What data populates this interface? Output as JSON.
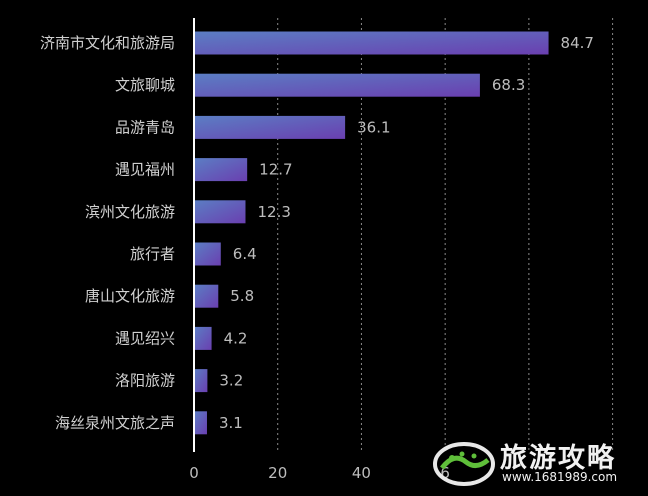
{
  "chart_data": {
    "type": "bar",
    "orientation": "horizontal",
    "categories": [
      "济南市文化和旅游局",
      "文旅聊城",
      "品游青岛",
      "遇见福州",
      "滨州文化旅游",
      "旅行者",
      "唐山文化旅游",
      "遇见绍兴",
      "洛阳旅游",
      "海丝泉州文旅之声"
    ],
    "values": [
      84.7,
      68.3,
      36.1,
      12.7,
      12.3,
      6.4,
      5.8,
      4.2,
      3.2,
      3.1
    ],
    "value_labels": [
      "84.7",
      "68.3",
      "36.1",
      "12.7",
      "12.3",
      "6.4",
      "5.8",
      "4.2",
      "3.2",
      "3.1"
    ],
    "x_ticks": [
      "0",
      "20",
      "40",
      "6"
    ],
    "xlim": [
      0,
      100
    ],
    "grid": true,
    "title": "",
    "xlabel": "",
    "ylabel": "",
    "bar_gradient": [
      "#5b7ec4",
      "#6a3fb0"
    ]
  },
  "watermark": {
    "title": "旅游攻略",
    "url": "www.1681989.com"
  }
}
